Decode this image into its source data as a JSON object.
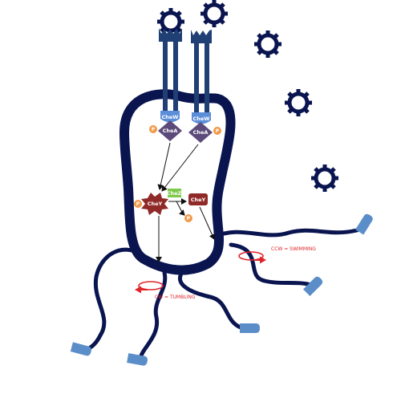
{
  "labels": {
    "chew_left": "CheW",
    "chew_right": "CheW",
    "chea_left": "CheA",
    "chea_right": "CheA",
    "chey_phos": "CheY",
    "chez": "CheZ",
    "chey": "CheY",
    "p_left": "P",
    "p_right": "P",
    "p_chey": "P",
    "p_released": "P",
    "ccw": "CCW = SWIMMING",
    "cw": "CW = TUMBLING"
  },
  "colors": {
    "cell_outline": "#0a1550",
    "receptor": "#1f3f75",
    "chew": "#5b8ed8",
    "chea": "#5b4a7a",
    "chey": "#8f2a28",
    "chez": "#7ec84a",
    "phosphate": "#ef9a4a",
    "flagellum": "#0a1550",
    "motor_tip": "#5b8ec9",
    "rotation_arrow": "#e0242a"
  },
  "icons": [
    "attractant-gear-icon",
    "rotation-arrow-icon"
  ]
}
